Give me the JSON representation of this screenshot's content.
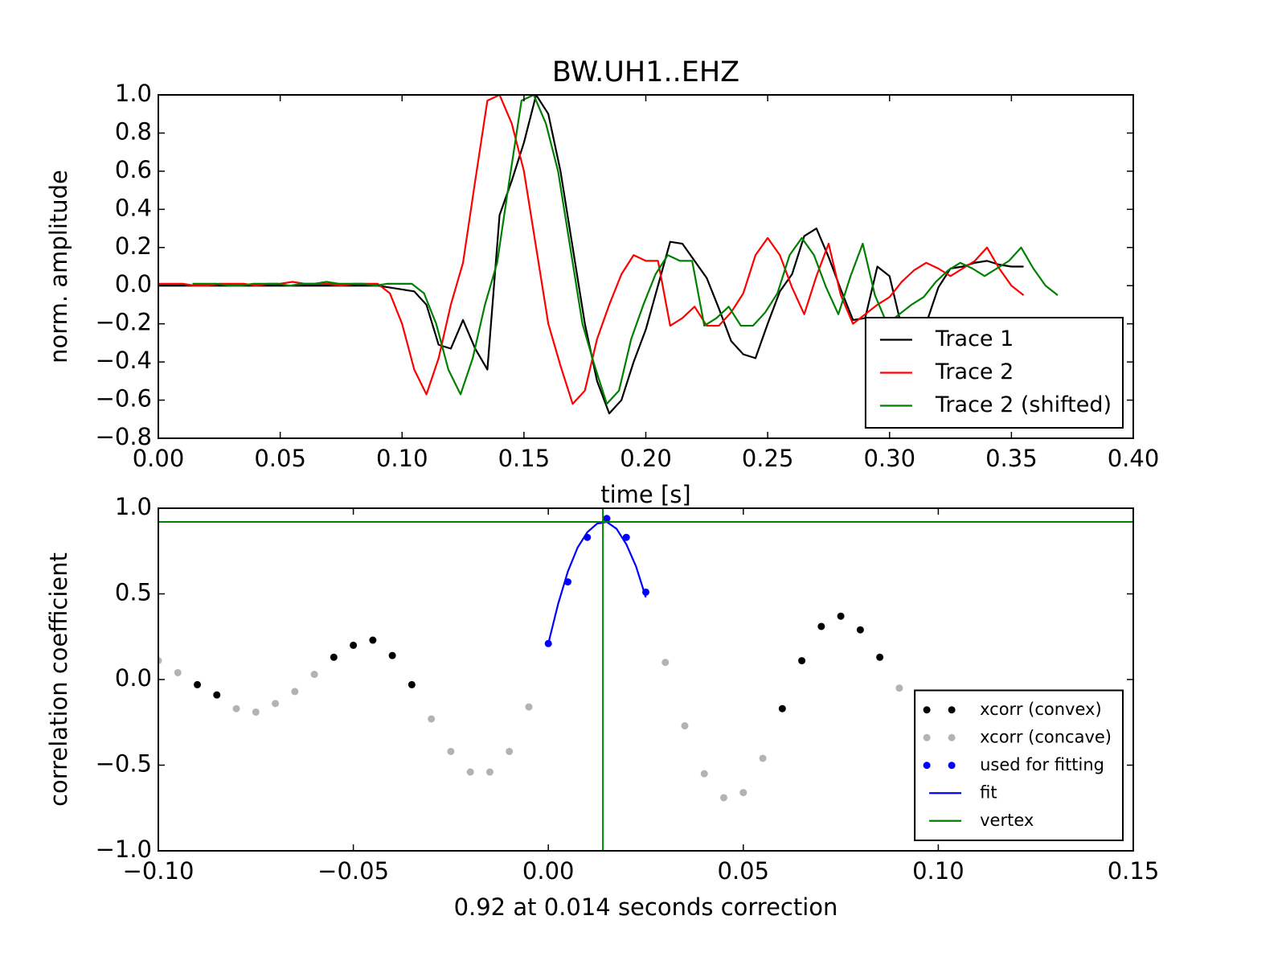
{
  "chart_data": [
    {
      "type": "line",
      "title": "BW.UH1..EHZ",
      "x_label": "time [s]",
      "y_label": "norm. amplitude",
      "x": [
        0,
        0.005,
        0.01,
        0.015,
        0.02,
        0.025,
        0.03,
        0.035,
        0.04,
        0.045,
        0.05,
        0.055,
        0.06,
        0.065,
        0.07,
        0.075,
        0.08,
        0.085,
        0.09,
        0.095,
        0.1,
        0.105,
        0.11,
        0.115,
        0.12,
        0.125,
        0.13,
        0.135,
        0.14,
        0.145,
        0.15,
        0.155,
        0.16,
        0.165,
        0.17,
        0.175,
        0.18,
        0.185,
        0.19,
        0.195,
        0.2,
        0.205,
        0.21,
        0.215,
        0.22,
        0.225,
        0.23,
        0.235,
        0.24,
        0.245,
        0.25,
        0.255,
        0.26,
        0.265,
        0.27,
        0.275,
        0.28,
        0.285,
        0.29,
        0.295,
        0.3,
        0.305,
        0.31,
        0.315,
        0.32,
        0.325,
        0.33,
        0.335,
        0.34,
        0.345,
        0.35,
        0.355
      ],
      "series": [
        {
          "name": "Trace 1",
          "color": "#000000",
          "values": [
            0,
            0,
            0,
            0,
            0,
            0,
            0,
            0,
            0,
            0,
            0,
            0,
            0,
            0,
            0,
            0,
            0,
            0,
            0,
            -0.01,
            -0.02,
            -0.03,
            -0.1,
            -0.31,
            -0.33,
            -0.18,
            -0.33,
            -0.44,
            0.37,
            0.55,
            0.75,
            1.0,
            0.9,
            0.6,
            0.2,
            -0.2,
            -0.5,
            -0.67,
            -0.6,
            -0.4,
            -0.23,
            0.0,
            0.23,
            0.22,
            0.13,
            0.04,
            -0.12,
            -0.29,
            -0.36,
            -0.38,
            -0.2,
            -0.03,
            0.06,
            0.26,
            0.3,
            0.15,
            -0.02,
            -0.18,
            -0.17,
            0.1,
            0.05,
            -0.22,
            -0.2,
            -0.2,
            -0.01,
            0.09,
            0.1,
            0.12,
            0.13,
            0.11,
            0.1,
            0.1
          ]
        },
        {
          "name": "Trace 2",
          "color": "#ff0000",
          "values": [
            0.01,
            0.01,
            0.01,
            0,
            0,
            0.01,
            0.01,
            0.01,
            0,
            0.01,
            0.01,
            0.02,
            0.01,
            0.01,
            0.01,
            0,
            0.01,
            0.01,
            0.01,
            -0.04,
            -0.2,
            -0.44,
            -0.57,
            -0.38,
            -0.1,
            0.12,
            0.55,
            0.97,
            1.0,
            0.85,
            0.6,
            0.2,
            -0.2,
            -0.42,
            -0.62,
            -0.55,
            -0.28,
            -0.1,
            0.06,
            0.16,
            0.13,
            0.13,
            -0.21,
            -0.17,
            -0.11,
            -0.21,
            -0.21,
            -0.14,
            -0.04,
            0.16,
            0.25,
            0.16,
            -0.01,
            -0.15,
            0.05,
            0.22,
            -0.05,
            -0.2,
            -0.15,
            -0.1,
            -0.06,
            0.02,
            0.08,
            0.12,
            0.09,
            0.05,
            0.09,
            0.13,
            0.2,
            0.09,
            0.0,
            -0.05
          ]
        },
        {
          "name": "Trace 2 (shifted)",
          "color": "#008000",
          "x": [
            0.014,
            0.019,
            0.024,
            0.029,
            0.034,
            0.039,
            0.044,
            0.049,
            0.054,
            0.059,
            0.064,
            0.069,
            0.074,
            0.079,
            0.084,
            0.089,
            0.094,
            0.099,
            0.104,
            0.109,
            0.114,
            0.119,
            0.124,
            0.129,
            0.134,
            0.139,
            0.144,
            0.149,
            0.154,
            0.159,
            0.164,
            0.169,
            0.174,
            0.179,
            0.184,
            0.189,
            0.194,
            0.199,
            0.204,
            0.209,
            0.214,
            0.219,
            0.224,
            0.229,
            0.234,
            0.239,
            0.244,
            0.249,
            0.254,
            0.259,
            0.264,
            0.269,
            0.274,
            0.279,
            0.284,
            0.289,
            0.294,
            0.299,
            0.304,
            0.309,
            0.314,
            0.319,
            0.324,
            0.329,
            0.334,
            0.339,
            0.344,
            0.349,
            0.354,
            0.359,
            0.364,
            0.369
          ],
          "values": [
            0.01,
            0.01,
            0.01,
            0,
            0,
            0.01,
            0.01,
            0.01,
            0,
            0.01,
            0.01,
            0.02,
            0.01,
            0.01,
            0.01,
            0,
            0.01,
            0.01,
            0.01,
            -0.04,
            -0.2,
            -0.44,
            -0.57,
            -0.38,
            -0.1,
            0.12,
            0.55,
            0.97,
            1.0,
            0.85,
            0.6,
            0.2,
            -0.2,
            -0.42,
            -0.62,
            -0.55,
            -0.28,
            -0.1,
            0.06,
            0.16,
            0.13,
            0.13,
            -0.21,
            -0.17,
            -0.11,
            -0.21,
            -0.21,
            -0.14,
            -0.04,
            0.16,
            0.25,
            0.16,
            -0.01,
            -0.15,
            0.05,
            0.22,
            -0.05,
            -0.2,
            -0.15,
            -0.1,
            -0.06,
            0.02,
            0.08,
            0.12,
            0.09,
            0.05,
            0.09,
            0.13,
            0.2,
            0.09,
            0.0,
            -0.05
          ]
        }
      ],
      "xlim": [
        0,
        0.4
      ],
      "xticks": [
        {
          "value": 0,
          "label": "0.00"
        },
        {
          "value": 0.05,
          "label": "0.05"
        },
        {
          "value": 0.1,
          "label": "0.10"
        },
        {
          "value": 0.15,
          "label": "0.15"
        },
        {
          "value": 0.2,
          "label": "0.20"
        },
        {
          "value": 0.25,
          "label": "0.25"
        },
        {
          "value": 0.3,
          "label": "0.30"
        },
        {
          "value": 0.35,
          "label": "0.35"
        },
        {
          "value": 0.4,
          "label": "0.40"
        }
      ],
      "ylim": [
        -0.8,
        1.0
      ],
      "yticks": [
        {
          "value": -0.8,
          "label": "−0.8"
        },
        {
          "value": -0.6,
          "label": "−0.6"
        },
        {
          "value": -0.4,
          "label": "−0.4"
        },
        {
          "value": -0.2,
          "label": "−0.2"
        },
        {
          "value": 0,
          "label": "0.0"
        },
        {
          "value": 0.2,
          "label": "0.2"
        },
        {
          "value": 0.4,
          "label": "0.4"
        },
        {
          "value": 0.6,
          "label": "0.6"
        },
        {
          "value": 0.8,
          "label": "0.8"
        },
        {
          "value": 1.0,
          "label": "1.0"
        }
      ],
      "legend": "lower right"
    },
    {
      "type": "scatter",
      "x_label": "0.92 at 0.014 seconds correction",
      "y_label": "correlation coefficient",
      "series": [
        {
          "name": "xcorr (convex)",
          "color": "#000000",
          "marker": "o",
          "x": [
            -0.09,
            -0.085,
            -0.055,
            -0.05,
            -0.045,
            -0.04,
            -0.035,
            0.06,
            0.065,
            0.07,
            0.075,
            0.08,
            0.085
          ],
          "values": [
            -0.03,
            -0.09,
            0.13,
            0.2,
            0.23,
            0.14,
            -0.03,
            -0.17,
            0.11,
            0.31,
            0.37,
            0.29,
            0.13
          ]
        },
        {
          "name": "xcorr (concave)",
          "color": "#b3b3b3",
          "marker": "o",
          "x": [
            -0.1,
            -0.095,
            -0.08,
            -0.075,
            -0.07,
            -0.065,
            -0.06,
            -0.03,
            -0.025,
            -0.02,
            -0.015,
            -0.01,
            -0.005,
            0.03,
            0.035,
            0.04,
            0.045,
            0.05,
            0.055,
            0.09
          ],
          "values": [
            0.11,
            0.04,
            -0.17,
            -0.19,
            -0.14,
            -0.07,
            0.03,
            -0.23,
            -0.42,
            -0.54,
            -0.54,
            -0.42,
            -0.16,
            0.1,
            -0.27,
            -0.55,
            -0.69,
            -0.66,
            -0.46,
            -0.05
          ]
        },
        {
          "name": "used for fitting",
          "color": "#0000ff",
          "marker": "o",
          "x": [
            0,
            0.005,
            0.01,
            0.015,
            0.02,
            0.025
          ],
          "values": [
            0.21,
            0.57,
            0.83,
            0.94,
            0.83,
            0.51
          ]
        },
        {
          "name": "fit",
          "color": "#0000ff",
          "x": [
            0,
            0.0025,
            0.005,
            0.0075,
            0.01,
            0.0125,
            0.015,
            0.0175,
            0.02,
            0.0225,
            0.025
          ],
          "values": [
            0.21,
            0.44,
            0.63,
            0.77,
            0.86,
            0.91,
            0.92,
            0.88,
            0.79,
            0.66,
            0.48
          ]
        },
        {
          "name": "vertex",
          "color": "#008000",
          "x": 0.014,
          "y": 0.92
        }
      ],
      "xlim": [
        -0.1,
        0.15
      ],
      "xticks": [
        {
          "value": -0.1,
          "label": "−0.10"
        },
        {
          "value": -0.05,
          "label": "−0.05"
        },
        {
          "value": 0,
          "label": "0.00"
        },
        {
          "value": 0.05,
          "label": "0.05"
        },
        {
          "value": 0.1,
          "label": "0.10"
        },
        {
          "value": 0.15,
          "label": "0.15"
        }
      ],
      "ylim": [
        -1.0,
        1.0
      ],
      "yticks": [
        {
          "value": -1.0,
          "label": "−1.0"
        },
        {
          "value": -0.5,
          "label": "−0.5"
        },
        {
          "value": 0,
          "label": "0.0"
        },
        {
          "value": 0.5,
          "label": "0.5"
        },
        {
          "value": 1.0,
          "label": "1.0"
        }
      ],
      "legend": "lower right"
    }
  ]
}
